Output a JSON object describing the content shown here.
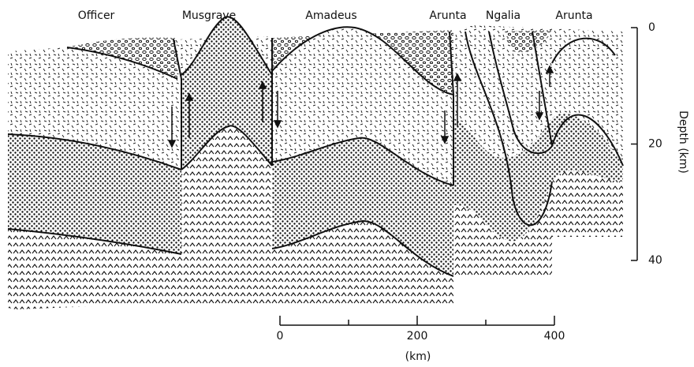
{
  "regions": [
    "Officer",
    "Musgrave",
    "Amadeus",
    "Arunta",
    "Ngalia",
    "Arunta"
  ],
  "depth_axis": {
    "label": "Depth (km)",
    "ticks": [
      0,
      20,
      40
    ]
  },
  "scale_bar": {
    "ticks": [
      0,
      200,
      400
    ],
    "label": "(km)"
  }
}
